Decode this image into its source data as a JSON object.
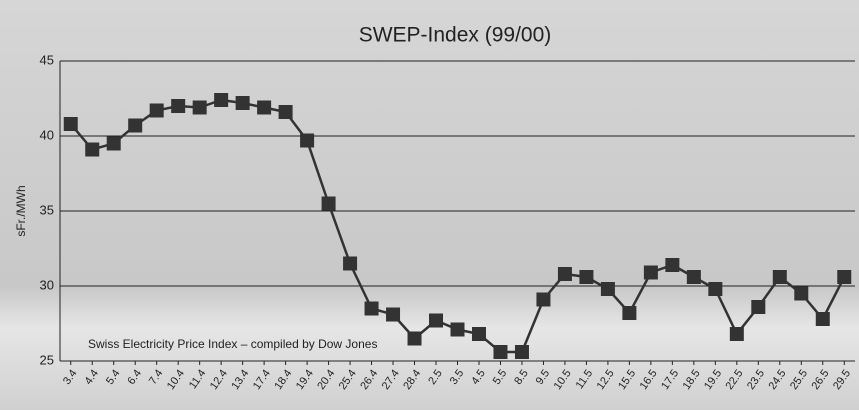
{
  "chart_data": {
    "type": "line",
    "title": "SWEP-Index (99/00)",
    "y_label": "sFr./MWh",
    "annotation": "Swiss Electricity Price Index – compiled by Dow Jones",
    "categories": [
      "3.4",
      "4.4",
      "5.4",
      "6.4",
      "7.4",
      "10.4",
      "11.4",
      "12.4",
      "13.4",
      "17.4",
      "18.4",
      "19.4",
      "20.4",
      "25.4",
      "26.4",
      "27.4",
      "28.4",
      "2.5",
      "3.5",
      "4.5",
      "5.5",
      "8.5",
      "9.5",
      "10.5",
      "11.5",
      "12.5",
      "15.5",
      "16.5",
      "17.5",
      "18.5",
      "19.5",
      "22.5",
      "23.5",
      "24.5",
      "25.5",
      "26.5",
      "29.5"
    ],
    "series": [
      {
        "color": "#333333",
        "values": [
          40.8,
          39.1,
          39.5,
          40.7,
          41.7,
          42.0,
          41.9,
          42.4,
          42.2,
          41.9,
          41.6,
          39.7,
          35.5,
          31.5,
          28.5,
          28.1,
          26.5,
          27.7,
          27.1,
          26.8,
          25.6,
          25.6,
          29.1,
          30.8,
          30.6,
          29.8,
          28.2,
          30.9,
          31.4,
          30.6,
          29.8,
          26.8,
          28.6,
          30.6,
          29.5,
          27.8,
          30.6
        ]
      }
    ],
    "ylim": [
      25,
      45
    ],
    "yticks": [
      25,
      30,
      35,
      40,
      45
    ],
    "grid": true
  }
}
